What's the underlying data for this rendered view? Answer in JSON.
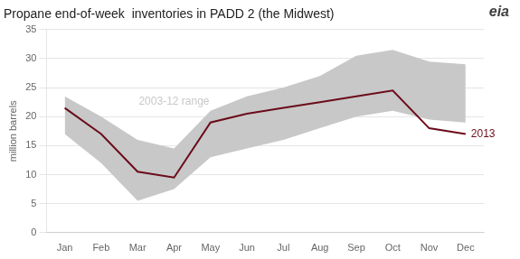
{
  "chart_data": {
    "type": "line",
    "title": "Propane end-of-week  inventories in PADD 2 (the Midwest)",
    "ylabel": "million barrels",
    "categories": [
      "Jan",
      "Feb",
      "Mar",
      "Apr",
      "May",
      "Jun",
      "Jul",
      "Aug",
      "Sep",
      "Oct",
      "Nov",
      "Dec"
    ],
    "series": [
      {
        "name": "2003-12 range",
        "type": "range",
        "color": "#c8c8c8",
        "low": [
          17.0,
          12.0,
          5.5,
          7.5,
          13.0,
          14.5,
          16.0,
          18.0,
          20.0,
          21.0,
          19.5,
          19.0
        ],
        "high": [
          23.5,
          20.0,
          16.0,
          14.5,
          21.0,
          23.5,
          25.0,
          27.0,
          30.5,
          31.5,
          29.5,
          29.0
        ]
      },
      {
        "name": "2013",
        "type": "line",
        "color": "#6b0c1a",
        "values": [
          21.5,
          17.0,
          10.5,
          9.5,
          19.0,
          20.5,
          21.5,
          22.5,
          23.5,
          24.5,
          18.0,
          17.0
        ]
      }
    ],
    "ylim": [
      0,
      35
    ],
    "yticks": [
      0,
      5,
      10,
      15,
      20,
      25,
      30,
      35
    ],
    "grid": "y",
    "annotations": [
      "eia"
    ]
  }
}
